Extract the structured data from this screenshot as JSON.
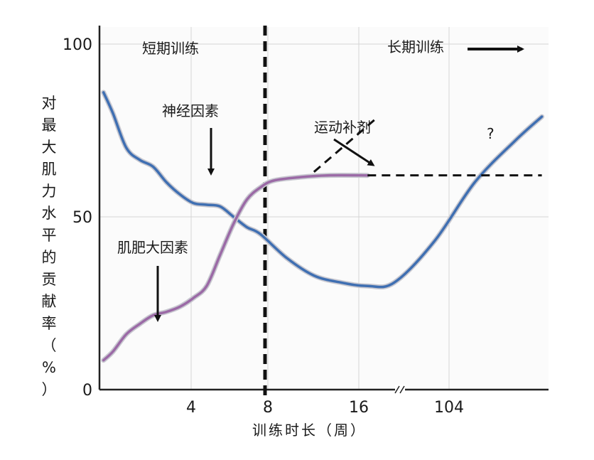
{
  "chart_data": {
    "type": "line",
    "ylabel_chars": [
      "对",
      "最",
      "大",
      "肌",
      "力",
      "水",
      "平",
      "的",
      "贡",
      "献",
      "率",
      "（",
      "%",
      "）"
    ],
    "xlabel": "训练时长（周）",
    "ylim": [
      0,
      100
    ],
    "yticks": [
      0,
      50,
      100
    ],
    "xticks": [
      "4",
      "8",
      "16",
      "104"
    ],
    "x_axis_break": true,
    "grid": true,
    "phase_labels": {
      "short_term": "短期训练",
      "long_term": "长期训练"
    },
    "phase_divider_at": "8",
    "series": [
      {
        "name": "神经因素",
        "color": "#3f6fb2",
        "points": [
          {
            "x": 0.3,
            "y": 86
          },
          {
            "x": 1,
            "y": 80
          },
          {
            "x": 2,
            "y": 70
          },
          {
            "x": 3,
            "y": 66.5
          },
          {
            "x": 4,
            "y": 64.5
          },
          {
            "x": 5,
            "y": 60
          },
          {
            "x": 6,
            "y": 56.5
          },
          {
            "x": 7,
            "y": 54
          },
          {
            "x": 8,
            "y": 53.5
          },
          {
            "x": 9,
            "y": 53
          },
          {
            "x": 10,
            "y": 50
          },
          {
            "x": 11,
            "y": 47
          },
          {
            "x": 12,
            "y": 45
          },
          {
            "x": 14,
            "y": 38
          },
          {
            "x": 16,
            "y": 33
          },
          {
            "x": 18,
            "y": 31
          },
          {
            "x": 20,
            "y": 30
          },
          {
            "x": 22,
            "y": 31
          },
          {
            "x": 25,
            "y": 43
          },
          {
            "x": 28,
            "y": 60
          },
          {
            "x": 31,
            "y": 72
          },
          {
            "x": 33,
            "y": 79
          }
        ]
      },
      {
        "name": "肌肥大因素",
        "color": "#9b6aa6",
        "points": [
          {
            "x": 0.3,
            "y": 8.5
          },
          {
            "x": 1,
            "y": 11
          },
          {
            "x": 2,
            "y": 16
          },
          {
            "x": 3,
            "y": 19
          },
          {
            "x": 4,
            "y": 21.5
          },
          {
            "x": 5,
            "y": 22.5
          },
          {
            "x": 6,
            "y": 24
          },
          {
            "x": 7,
            "y": 26.5
          },
          {
            "x": 8,
            "y": 30
          },
          {
            "x": 9,
            "y": 39
          },
          {
            "x": 10,
            "y": 48
          },
          {
            "x": 11,
            "y": 55
          },
          {
            "x": 12,
            "y": 58.5
          },
          {
            "x": 13,
            "y": 60.5
          },
          {
            "x": 15,
            "y": 61.5
          },
          {
            "x": 17,
            "y": 62
          },
          {
            "x": 20,
            "y": 62
          }
        ]
      }
    ],
    "dashed_lines": [
      {
        "name": "运动补剂",
        "points": [
          {
            "x": 16,
            "y": 63
          },
          {
            "x": 20.5,
            "y": 78
          }
        ]
      },
      {
        "name": "?",
        "points": [
          {
            "x": 20,
            "y": 62
          },
          {
            "x": 33,
            "y": 62
          }
        ]
      }
    ],
    "annotations": [
      {
        "text": "神经因素",
        "target": {
          "x": 4.7,
          "y": 63
        }
      },
      {
        "text": "肌肥大因素",
        "target": {
          "x": 2.0,
          "y": 16.5
        }
      },
      {
        "text": "运动补剂",
        "target": {
          "x": 16.2,
          "y": 63.5
        }
      },
      {
        "text": "?"
      }
    ]
  }
}
